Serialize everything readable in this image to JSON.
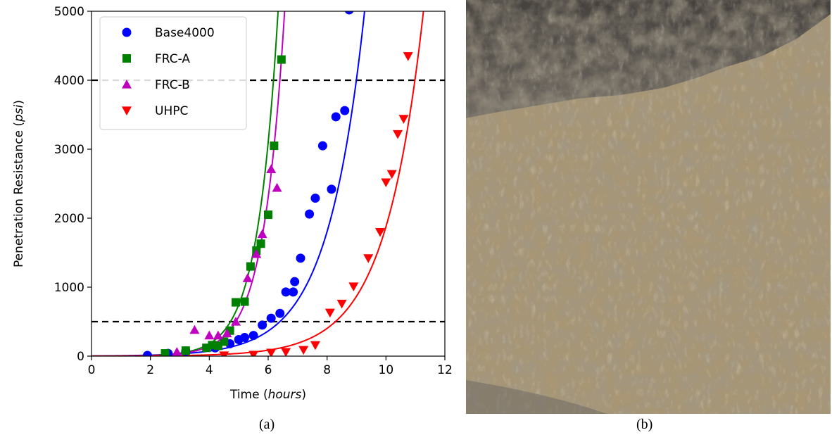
{
  "chart_data": {
    "type": "scatter",
    "xlabel": "Time",
    "xlabel_unit": "hours",
    "ylabel": "Penetration Resistance",
    "ylabel_unit": "psi",
    "xlim": [
      0,
      12
    ],
    "ylim": [
      0,
      5000
    ],
    "xticks": [
      0,
      2,
      4,
      6,
      8,
      10,
      12
    ],
    "yticks": [
      0,
      1000,
      2000,
      3000,
      4000,
      5000
    ],
    "grid": false,
    "legend_position": "top-left",
    "reference_lines": [
      500,
      4000
    ],
    "series": [
      {
        "name": "Base4000",
        "color": "#0000ff",
        "marker": "circle",
        "fit": {
          "a": 3.0,
          "b": 0.8
        },
        "points": [
          [
            1.9,
            10
          ],
          [
            2.6,
            40
          ],
          [
            3.2,
            70
          ],
          [
            4.2,
            120
          ],
          [
            4.7,
            180
          ],
          [
            5.0,
            240
          ],
          [
            5.2,
            270
          ],
          [
            5.5,
            300
          ],
          [
            5.8,
            450
          ],
          [
            6.1,
            550
          ],
          [
            6.4,
            620
          ],
          [
            6.6,
            930
          ],
          [
            6.85,
            930
          ],
          [
            6.9,
            1080
          ],
          [
            7.1,
            1420
          ],
          [
            7.4,
            2060
          ],
          [
            7.6,
            2290
          ],
          [
            7.85,
            3050
          ],
          [
            8.15,
            2420
          ],
          [
            8.3,
            3470
          ],
          [
            8.6,
            3560
          ],
          [
            8.75,
            5020
          ]
        ]
      },
      {
        "name": "FRC-A",
        "color": "#008000",
        "marker": "square",
        "fit": {
          "a": 0.6,
          "b": 1.425
        },
        "points": [
          [
            2.5,
            40
          ],
          [
            3.2,
            80
          ],
          [
            3.9,
            120
          ],
          [
            4.1,
            160
          ],
          [
            4.3,
            150
          ],
          [
            4.5,
            210
          ],
          [
            4.7,
            370
          ],
          [
            4.9,
            780
          ],
          [
            5.2,
            790
          ],
          [
            5.4,
            1300
          ],
          [
            5.6,
            1530
          ],
          [
            5.75,
            1630
          ],
          [
            6.0,
            2050
          ],
          [
            6.2,
            3050
          ],
          [
            6.45,
            4300
          ]
        ]
      },
      {
        "name": "FRC-B",
        "color": "#bf00bf",
        "marker": "triangle-up",
        "fit": {
          "a": 0.55,
          "b": 1.39
        },
        "points": [
          [
            2.9,
            60
          ],
          [
            3.5,
            380
          ],
          [
            4.0,
            300
          ],
          [
            4.3,
            300
          ],
          [
            4.6,
            330
          ],
          [
            4.9,
            500
          ],
          [
            5.3,
            1130
          ],
          [
            5.6,
            1480
          ],
          [
            5.8,
            1770
          ],
          [
            6.1,
            2710
          ],
          [
            6.3,
            2440
          ]
        ]
      },
      {
        "name": "UHPC",
        "color": "#ff0000",
        "marker": "triangle-down",
        "fit": {
          "a": 0.85,
          "b": 0.77
        },
        "points": [
          [
            4.5,
            10
          ],
          [
            5.5,
            20
          ],
          [
            6.1,
            50
          ],
          [
            6.6,
            60
          ],
          [
            7.2,
            90
          ],
          [
            7.6,
            160
          ],
          [
            8.1,
            630
          ],
          [
            8.5,
            760
          ],
          [
            8.9,
            1010
          ],
          [
            9.4,
            1420
          ],
          [
            9.8,
            1800
          ],
          [
            10.0,
            2520
          ],
          [
            10.2,
            2640
          ],
          [
            10.4,
            3220
          ],
          [
            10.6,
            3440
          ],
          [
            10.75,
            4350
          ]
        ]
      }
    ]
  },
  "captions": {
    "left": "(a)",
    "right": "(b)"
  },
  "photo": {
    "subject": "fractured concrete surface",
    "base_color": "#a89674",
    "dark_color": "#5b5650"
  }
}
